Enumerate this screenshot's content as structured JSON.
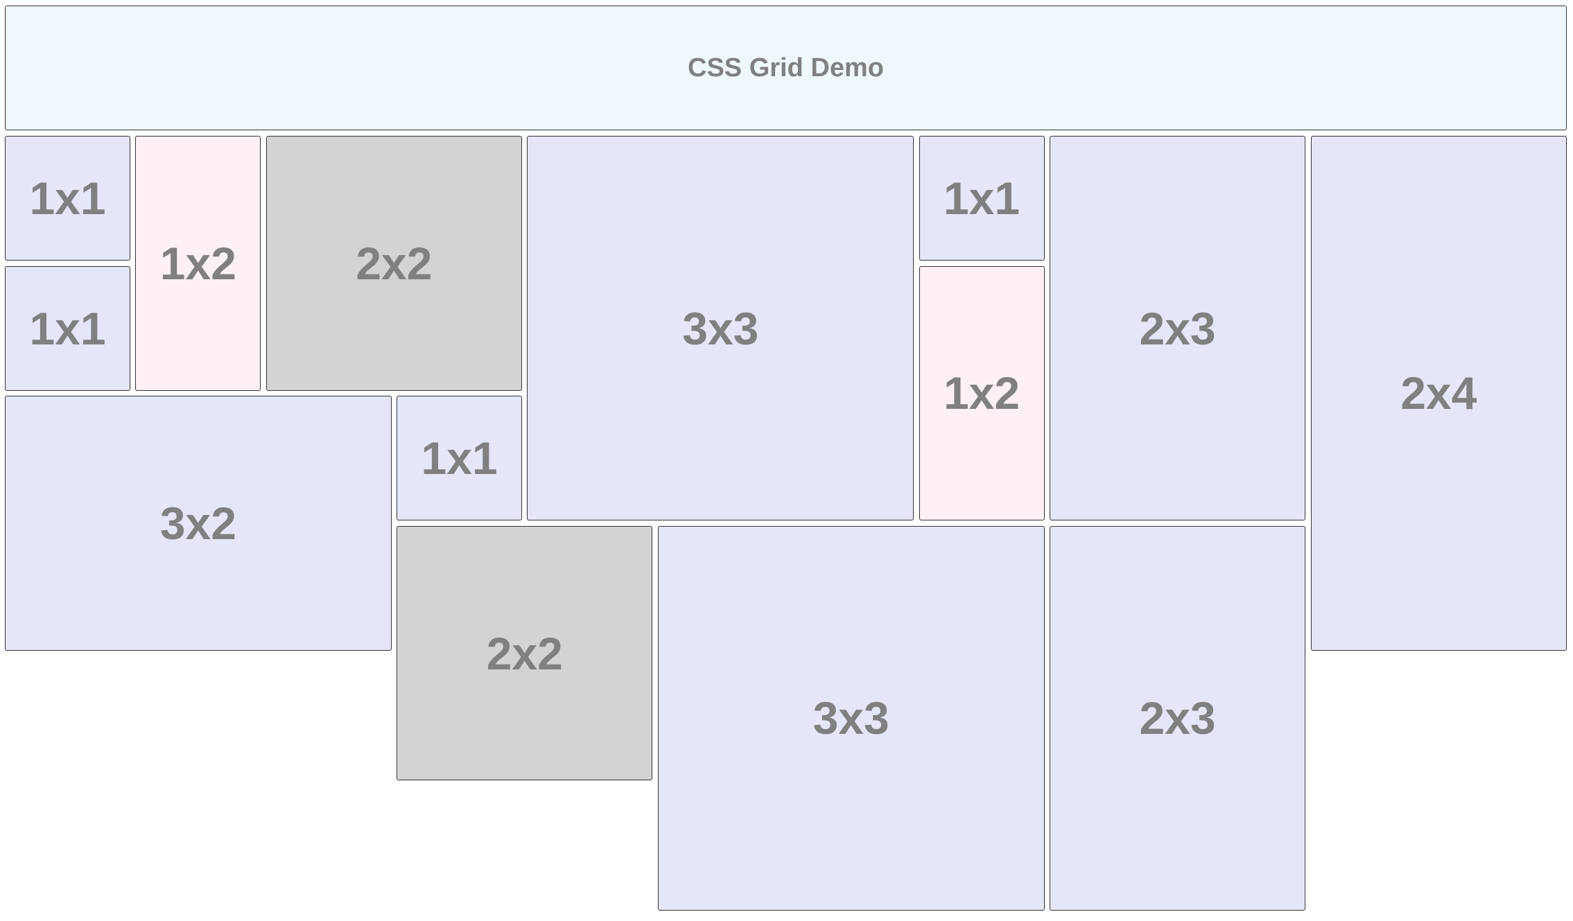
{
  "header": {
    "title": "CSS Grid Demo",
    "background": "#f0f8ff"
  },
  "colors": {
    "lavender": "#e6e6fa",
    "lavenderblush": "#fff0f5",
    "lightgray": "#d3d3d3",
    "text": "#808080",
    "border": "#333333"
  },
  "grid": {
    "cells": [
      {
        "label": "1x1"
      },
      {
        "label": "1x2"
      },
      {
        "label": "2x2"
      },
      {
        "label": "3x3"
      },
      {
        "label": "1x1"
      },
      {
        "label": "2x3"
      },
      {
        "label": "2x4"
      },
      {
        "label": "1x1"
      },
      {
        "label": "1x2"
      },
      {
        "label": "3x2"
      },
      {
        "label": "1x1"
      },
      {
        "label": "2x2"
      },
      {
        "label": "3x3"
      },
      {
        "label": "2x3"
      }
    ]
  }
}
